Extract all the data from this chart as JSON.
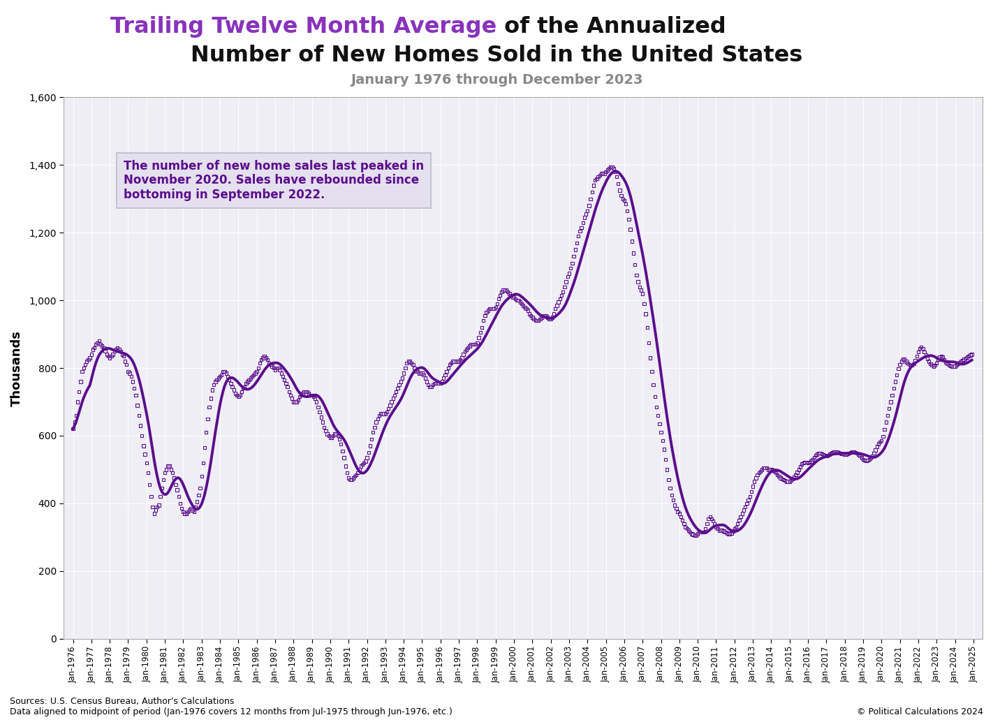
{
  "title_purple": "Trailing Twelve Month Average",
  "title_black": " of the Annualized",
  "title_line2": "Number of New Homes Sold in the United States",
  "subtitle": "January 1976 through December 2023",
  "ylabel": "Thousands",
  "annotation_text": "The number of new home sales last peaked in\nNovember 2020. Sales have rebounded since\nbottoming in September 2022.",
  "sources_line1": "Sources: U.S. Census Bureau, Author's Calculations",
  "sources_line2": "Data aligned to midpoint of period (Jan-1976 covers 12 months from Jul-1975 through Jun-1976, etc.)",
  "copyright": "© Political Calculations 2024",
  "line_color": "#5B0E8C",
  "background_color": "#FFFFFF",
  "plot_bg_color": "#EEEEF4",
  "grid_color": "#FFFFFF",
  "annotation_bg": "#E4E0EE",
  "ylim": [
    0,
    1600
  ],
  "yticks": [
    0,
    200,
    400,
    600,
    800,
    1000,
    1200,
    1400,
    1600
  ],
  "xtick_years": [
    1976,
    1977,
    1978,
    1979,
    1980,
    1981,
    1982,
    1983,
    1984,
    1985,
    1986,
    1987,
    1988,
    1989,
    1990,
    1991,
    1992,
    1993,
    1994,
    1995,
    1996,
    1997,
    1998,
    1999,
    2000,
    2001,
    2002,
    2003,
    2004,
    2005,
    2006,
    2007,
    2008,
    2009,
    2010,
    2011,
    2012,
    2013,
    2014,
    2015,
    2016,
    2017,
    2018,
    2019,
    2020,
    2021,
    2022,
    2023,
    2024,
    2025
  ],
  "monthly_raw": [
    620,
    640,
    660,
    700,
    730,
    760,
    790,
    800,
    810,
    820,
    825,
    830,
    840,
    855,
    860,
    870,
    875,
    880,
    870,
    865,
    860,
    850,
    840,
    835,
    830,
    835,
    840,
    850,
    855,
    860,
    855,
    850,
    840,
    835,
    820,
    810,
    790,
    785,
    775,
    760,
    740,
    720,
    690,
    660,
    630,
    600,
    570,
    545,
    520,
    490,
    455,
    420,
    390,
    370,
    380,
    390,
    395,
    420,
    445,
    470,
    490,
    500,
    510,
    510,
    500,
    490,
    475,
    455,
    440,
    420,
    400,
    385,
    375,
    370,
    370,
    375,
    380,
    385,
    380,
    375,
    390,
    405,
    425,
    445,
    480,
    520,
    565,
    610,
    650,
    685,
    710,
    735,
    750,
    760,
    765,
    770,
    775,
    780,
    790,
    790,
    785,
    775,
    765,
    755,
    745,
    735,
    725,
    720,
    715,
    720,
    730,
    740,
    745,
    755,
    760,
    765,
    770,
    775,
    780,
    785,
    790,
    800,
    815,
    825,
    830,
    835,
    830,
    825,
    815,
    810,
    805,
    800,
    795,
    800,
    800,
    795,
    785,
    775,
    765,
    755,
    745,
    730,
    720,
    710,
    700,
    700,
    700,
    705,
    715,
    720,
    725,
    730,
    730,
    730,
    725,
    720,
    720,
    715,
    710,
    700,
    685,
    670,
    655,
    640,
    625,
    615,
    605,
    600,
    595,
    595,
    600,
    605,
    605,
    600,
    590,
    575,
    555,
    535,
    510,
    490,
    475,
    470,
    470,
    475,
    480,
    485,
    490,
    500,
    510,
    515,
    520,
    525,
    535,
    550,
    570,
    590,
    610,
    625,
    640,
    650,
    660,
    665,
    665,
    665,
    665,
    670,
    680,
    690,
    700,
    710,
    720,
    730,
    740,
    750,
    760,
    770,
    785,
    800,
    815,
    820,
    820,
    815,
    810,
    800,
    790,
    790,
    785,
    785,
    785,
    780,
    770,
    760,
    750,
    745,
    745,
    750,
    755,
    755,
    755,
    755,
    755,
    760,
    770,
    780,
    790,
    800,
    810,
    815,
    820,
    820,
    820,
    820,
    820,
    825,
    830,
    840,
    850,
    855,
    860,
    865,
    870,
    870,
    870,
    870,
    875,
    890,
    905,
    920,
    940,
    955,
    965,
    970,
    975,
    975,
    975,
    975,
    980,
    990,
    1005,
    1015,
    1025,
    1030,
    1030,
    1030,
    1025,
    1020,
    1015,
    1010,
    1010,
    1005,
    1000,
    1000,
    995,
    990,
    985,
    980,
    975,
    970,
    960,
    955,
    950,
    945,
    940,
    940,
    940,
    945,
    950,
    955,
    955,
    955,
    950,
    945,
    945,
    950,
    960,
    975,
    985,
    995,
    1005,
    1015,
    1025,
    1040,
    1055,
    1070,
    1080,
    1095,
    1110,
    1130,
    1150,
    1170,
    1190,
    1205,
    1215,
    1230,
    1245,
    1255,
    1265,
    1280,
    1300,
    1320,
    1340,
    1355,
    1360,
    1365,
    1370,
    1375,
    1375,
    1375,
    1380,
    1385,
    1390,
    1395,
    1395,
    1390,
    1380,
    1365,
    1345,
    1325,
    1310,
    1300,
    1295,
    1285,
    1265,
    1240,
    1210,
    1175,
    1140,
    1105,
    1075,
    1055,
    1040,
    1030,
    1020,
    990,
    960,
    920,
    875,
    830,
    790,
    750,
    715,
    685,
    660,
    635,
    610,
    585,
    560,
    530,
    500,
    470,
    445,
    425,
    410,
    395,
    385,
    375,
    370,
    360,
    350,
    340,
    330,
    325,
    320,
    315,
    310,
    308,
    305,
    305,
    310,
    315,
    315,
    315,
    315,
    325,
    340,
    355,
    360,
    355,
    348,
    340,
    330,
    325,
    320,
    320,
    320,
    318,
    315,
    312,
    310,
    310,
    312,
    318,
    325,
    330,
    340,
    350,
    360,
    370,
    380,
    390,
    400,
    410,
    420,
    435,
    450,
    465,
    475,
    485,
    490,
    495,
    500,
    505,
    505,
    505,
    500,
    500,
    500,
    498,
    495,
    490,
    485,
    480,
    475,
    472,
    470,
    468,
    465,
    465,
    465,
    468,
    472,
    478,
    485,
    492,
    500,
    508,
    516,
    520,
    522,
    522,
    520,
    522,
    525,
    530,
    536,
    542,
    545,
    548,
    548,
    546,
    543,
    542,
    540,
    542,
    545,
    548,
    550,
    552,
    552,
    552,
    550,
    548,
    547,
    546,
    545,
    545,
    546,
    548,
    550,
    552,
    552,
    550,
    548,
    545,
    540,
    535,
    530,
    528,
    527,
    528,
    530,
    534,
    540,
    548,
    558,
    568,
    576,
    582,
    585,
    598,
    618,
    640,
    660,
    680,
    700,
    720,
    740,
    760,
    780,
    798,
    810,
    820,
    826,
    826,
    820,
    815,
    810,
    808,
    808,
    812,
    822,
    835,
    848,
    858,
    862,
    858,
    848,
    838,
    828,
    820,
    812,
    808,
    805,
    808,
    815,
    825,
    832,
    835,
    832,
    825,
    818,
    812,
    808,
    806,
    805,
    805,
    805,
    808,
    812,
    816,
    820,
    823,
    826,
    829,
    832,
    835,
    838,
    840
  ]
}
